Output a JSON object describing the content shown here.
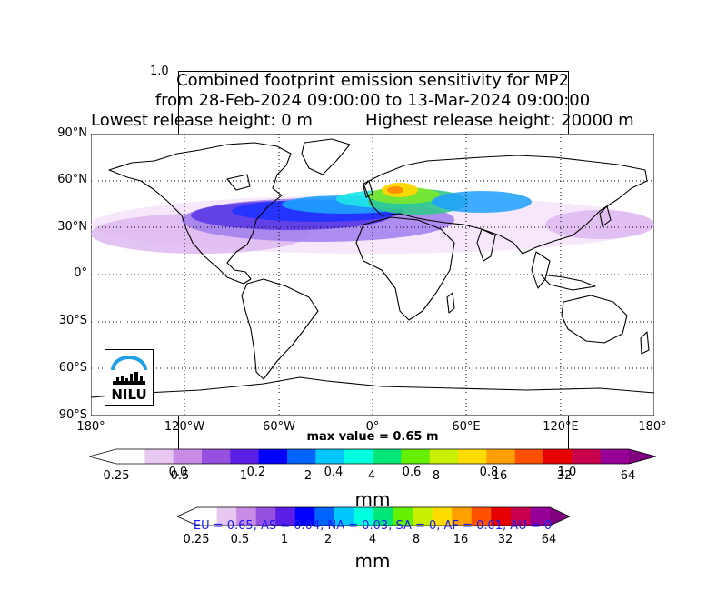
{
  "title": {
    "line1": "Combined footprint emission sensitivity for MP2",
    "line2": "from 28-Feb-2024 09:00:00 to 13-Mar-2024 09:00:00",
    "line3_left": "Lowest release height: 0 m",
    "line3_right": "Highest release height: 20000 m"
  },
  "stray_tick_1_0": "1.0",
  "map": {
    "lat_labels": [
      "90°N",
      "60°N",
      "30°N",
      "0°",
      "30°S",
      "60°S",
      "90°S"
    ],
    "lon_labels": [
      "180°",
      "120°W",
      "60°W",
      "0°",
      "60°E",
      "120°E",
      "180°"
    ],
    "max_value_label": "max value = 0.65 m",
    "logo_text": "NILU",
    "plume_colors": [
      "#f5e6fa",
      "#dcb4f0",
      "#a07cec",
      "#5a3ae6",
      "#1e32ff",
      "#1ea0ff",
      "#1ee6e6",
      "#32c88c",
      "#78e632",
      "#ffd700",
      "#ff8c00"
    ],
    "map_fill_color": "#ffffff",
    "coastline_color": "#000000",
    "grid_style": "dotted"
  },
  "colorbar_main": {
    "ticks": [
      "0.25",
      "0.5",
      "1",
      "2",
      "4",
      "8",
      "16",
      "32",
      "64"
    ],
    "unit": "mm",
    "colors": [
      "#ffffff",
      "#e8c8f0",
      "#c88ce6",
      "#9650e0",
      "#5a1ee6",
      "#0000ff",
      "#0064ff",
      "#00c8ff",
      "#00ffdc",
      "#00e678",
      "#64f000",
      "#c8f000",
      "#ffdc00",
      "#ffa000",
      "#ff5000",
      "#e60000",
      "#c8004b",
      "#960096"
    ]
  },
  "overlay_axis_ticks": [
    "0.0",
    "0.2",
    "0.4",
    "0.6",
    "0.8",
    "1.0"
  ],
  "colorbar_secondary": {
    "ticks": [
      "0.25",
      "0.5",
      "1",
      "2",
      "4",
      "8",
      "16",
      "32",
      "64"
    ],
    "unit": "mm"
  },
  "region_stats": "EU = 0.65,  AS = 0.04,  NA = 0.03,  SA = 0,  AF = 0.01,  AU = 0"
}
